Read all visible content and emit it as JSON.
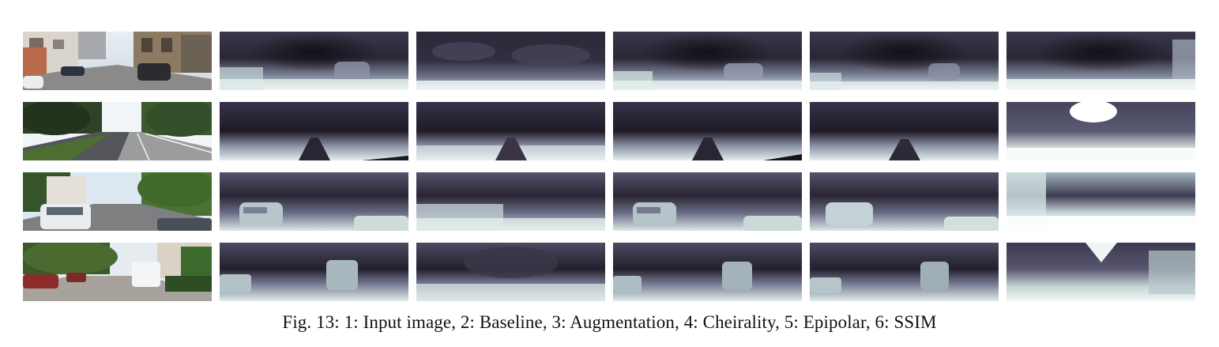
{
  "figure": {
    "caption": {
      "label": "Fig. 13:",
      "text": "1: Input image, 2: Baseline, 3: Augmentation, 4: Cheirality, 5: Epipolar, 6: SSIM"
    },
    "columns": [
      {
        "kind": "input"
      },
      {
        "kind": "depth"
      },
      {
        "kind": "depth-noisy"
      },
      {
        "kind": "depth"
      },
      {
        "kind": "depth"
      },
      {
        "kind": "depth-bright"
      }
    ],
    "rows": [
      {
        "scene": "street-buildings"
      },
      {
        "scene": "road-trees"
      },
      {
        "scene": "residential-car"
      },
      {
        "scene": "parking-van"
      }
    ],
    "colors": {
      "depth_far": "#1a1622",
      "depth_mid": "#55536e",
      "depth_near": "#c9dcd9",
      "depth_closest": "#eef6f4"
    }
  }
}
